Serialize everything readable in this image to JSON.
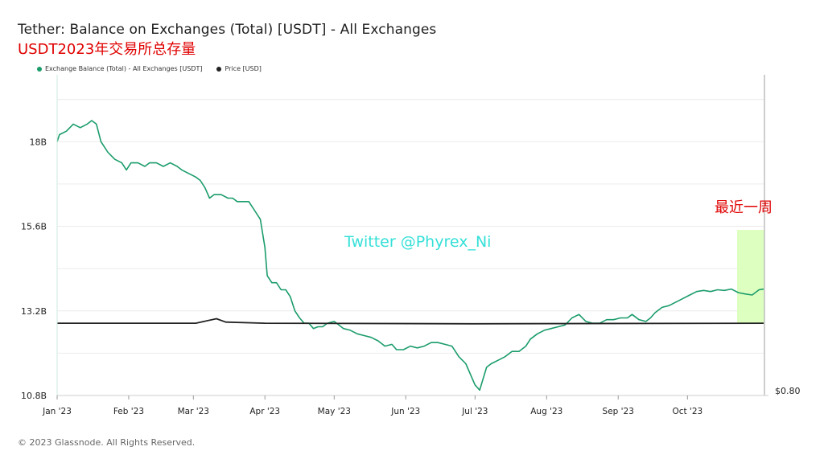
{
  "header": {
    "title": "Tether: Balance on Exchanges (Total) [USDT] - All Exchanges",
    "annotation_title": "USDT2023年交易所总存量"
  },
  "legend": [
    {
      "label": "Exchange Balance (Total) - All Exchanges [USDT]",
      "color": "#1a9c6b"
    },
    {
      "label": "Price [USD]",
      "color": "#222222"
    }
  ],
  "footer": {
    "copyright": "© 2023 Glassnode. All Rights Reserved."
  },
  "annotations": {
    "watermark": "Twitter @Phyrex_Ni",
    "recent_week": "最近一周",
    "watermark_color": "#35e0d8",
    "recent_week_color": "#e00000",
    "highlight_color": "#d9ffb8"
  },
  "chart_data": {
    "type": "line",
    "title": "Tether: Balance on Exchanges (Total) [USDT] - All Exchanges",
    "y_ticks": [
      "10.8B",
      "13.2B",
      "15.6B",
      "18B"
    ],
    "y_tick_values": [
      10.8,
      13.2,
      15.6,
      18.0
    ],
    "ylim": [
      10.8,
      19.9
    ],
    "right_axis_tick": "$0.80",
    "x_ticks": [
      "Jan '23",
      "Feb '23",
      "Mar '23",
      "Apr '23",
      "May '23",
      "Jun '23",
      "Jul '23",
      "Aug '23",
      "Sep '23",
      "Oct '23"
    ],
    "x_tick_days": [
      0,
      31,
      59,
      90,
      120,
      151,
      181,
      212,
      243,
      273
    ],
    "x_max_day": 273,
    "grid": true,
    "legend_position": "top-left",
    "highlight_days": [
      269,
      280
    ],
    "series": [
      {
        "name": "Exchange Balance (Total) - All Exchanges [USDT]",
        "unit": "B USDT",
        "color": "#1a9c6b",
        "points": [
          [
            0,
            18.0
          ],
          [
            1,
            18.2
          ],
          [
            4,
            18.3
          ],
          [
            7,
            18.5
          ],
          [
            10,
            18.4
          ],
          [
            13,
            18.5
          ],
          [
            15,
            18.6
          ],
          [
            17,
            18.5
          ],
          [
            19,
            18.0
          ],
          [
            22,
            17.7
          ],
          [
            25,
            17.5
          ],
          [
            28,
            17.4
          ],
          [
            30,
            17.2
          ],
          [
            32,
            17.4
          ],
          [
            35,
            17.4
          ],
          [
            38,
            17.3
          ],
          [
            40,
            17.4
          ],
          [
            43,
            17.4
          ],
          [
            46,
            17.3
          ],
          [
            49,
            17.4
          ],
          [
            52,
            17.3
          ],
          [
            54,
            17.2
          ],
          [
            57,
            17.1
          ],
          [
            60,
            17.0
          ],
          [
            62,
            16.9
          ],
          [
            64,
            16.7
          ],
          [
            66,
            16.4
          ],
          [
            68,
            16.5
          ],
          [
            71,
            16.5
          ],
          [
            74,
            16.4
          ],
          [
            76,
            16.4
          ],
          [
            78,
            16.3
          ],
          [
            81,
            16.3
          ],
          [
            83,
            16.3
          ],
          [
            86,
            16.0
          ],
          [
            88,
            15.8
          ],
          [
            90,
            15.0
          ],
          [
            91,
            14.2
          ],
          [
            93,
            14.0
          ],
          [
            95,
            14.0
          ],
          [
            97,
            13.8
          ],
          [
            99,
            13.8
          ],
          [
            101,
            13.6
          ],
          [
            103,
            13.2
          ],
          [
            105,
            13.0
          ],
          [
            107,
            12.85
          ],
          [
            109,
            12.85
          ],
          [
            111,
            12.7
          ],
          [
            113,
            12.75
          ],
          [
            115,
            12.75
          ],
          [
            117,
            12.85
          ],
          [
            120,
            12.9
          ],
          [
            122,
            12.8
          ],
          [
            124,
            12.7
          ],
          [
            127,
            12.65
          ],
          [
            130,
            12.55
          ],
          [
            133,
            12.5
          ],
          [
            136,
            12.45
          ],
          [
            139,
            12.35
          ],
          [
            142,
            12.2
          ],
          [
            145,
            12.25
          ],
          [
            147,
            12.1
          ],
          [
            150,
            12.1
          ],
          [
            153,
            12.2
          ],
          [
            156,
            12.15
          ],
          [
            159,
            12.2
          ],
          [
            162,
            12.3
          ],
          [
            165,
            12.3
          ],
          [
            168,
            12.25
          ],
          [
            171,
            12.2
          ],
          [
            174,
            11.9
          ],
          [
            177,
            11.7
          ],
          [
            179,
            11.4
          ],
          [
            181,
            11.1
          ],
          [
            183,
            10.95
          ],
          [
            186,
            11.6
          ],
          [
            188,
            11.7
          ],
          [
            191,
            11.8
          ],
          [
            194,
            11.9
          ],
          [
            197,
            12.05
          ],
          [
            200,
            12.05
          ],
          [
            203,
            12.2
          ],
          [
            205,
            12.4
          ],
          [
            208,
            12.55
          ],
          [
            211,
            12.65
          ],
          [
            214,
            12.7
          ],
          [
            217,
            12.75
          ],
          [
            220,
            12.8
          ],
          [
            223,
            13.0
          ],
          [
            226,
            13.1
          ],
          [
            229,
            12.9
          ],
          [
            232,
            12.85
          ],
          [
            235,
            12.85
          ],
          [
            238,
            12.95
          ],
          [
            241,
            12.95
          ],
          [
            244,
            13.0
          ],
          [
            247,
            13.0
          ],
          [
            249,
            13.1
          ],
          [
            252,
            12.95
          ],
          [
            255,
            12.9
          ],
          [
            257,
            13.0
          ],
          [
            259,
            13.15
          ],
          [
            262,
            13.3
          ],
          [
            265,
            13.35
          ],
          [
            268,
            13.45
          ],
          [
            271,
            13.55
          ],
          [
            274,
            13.65
          ],
          [
            277,
            13.75
          ],
          [
            280,
            13.78
          ],
          [
            283,
            13.75
          ],
          [
            286,
            13.8
          ],
          [
            289,
            13.78
          ],
          [
            292,
            13.82
          ],
          [
            295,
            13.72
          ],
          [
            298,
            13.68
          ],
          [
            301,
            13.65
          ],
          [
            304,
            13.8
          ],
          [
            306,
            13.82
          ]
        ]
      },
      {
        "name": "Price [USD]",
        "unit": "USD",
        "color": "#222222",
        "points": [
          [
            0,
            1.0
          ],
          [
            60,
            1.0
          ],
          [
            69,
            1.008
          ],
          [
            73,
            1.002
          ],
          [
            90,
            1.0
          ],
          [
            180,
            0.999
          ],
          [
            306,
            1.0
          ]
        ]
      }
    ]
  }
}
